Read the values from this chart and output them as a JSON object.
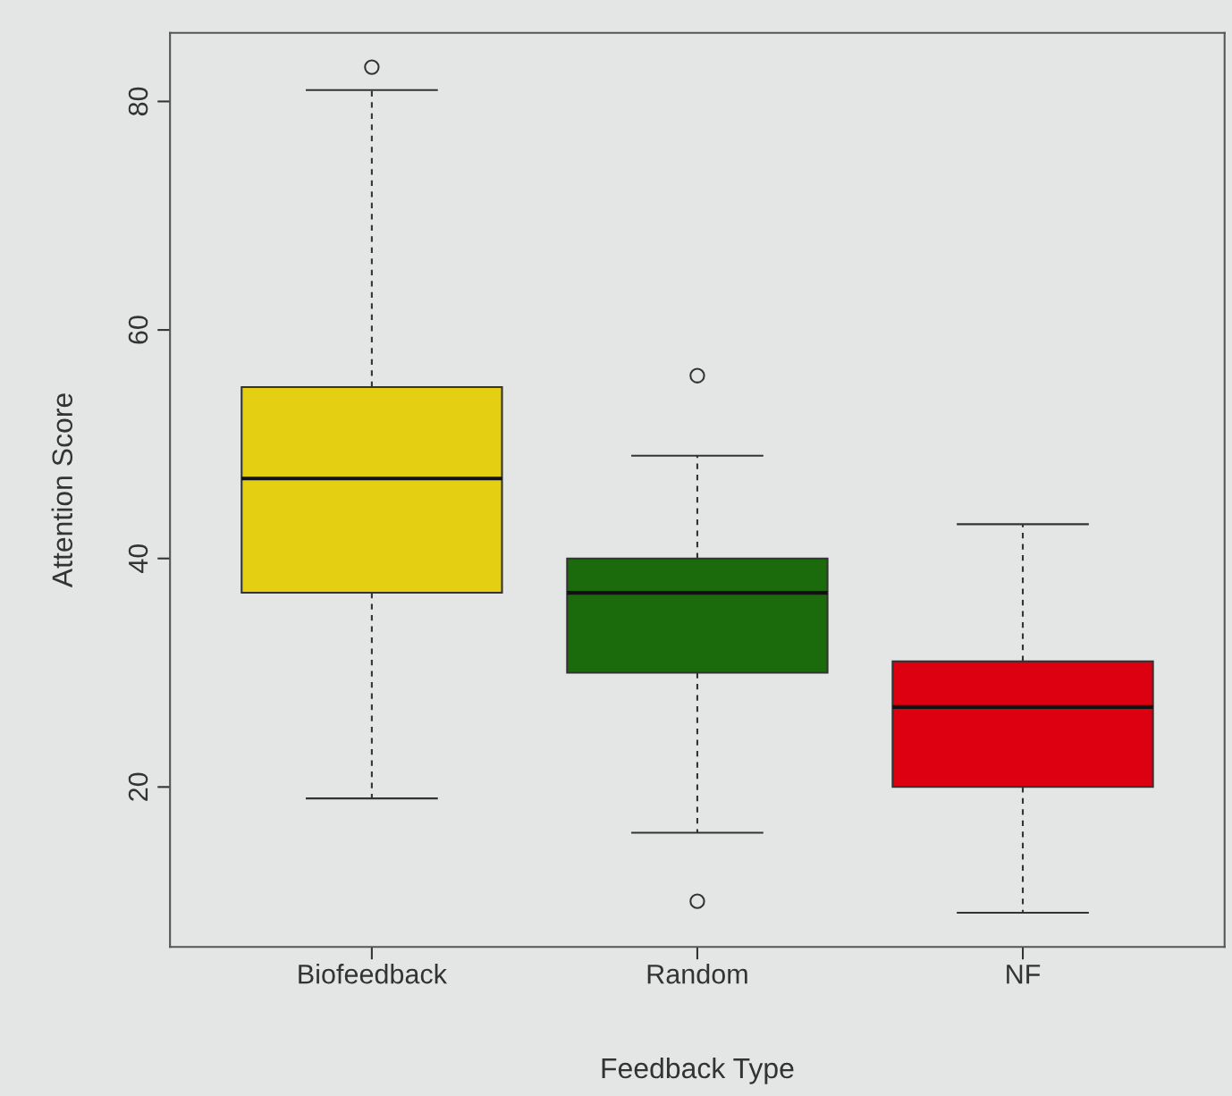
{
  "chart_data": {
    "type": "box",
    "xlabel": "Feedback Type",
    "ylabel": "Attention Score",
    "categories": [
      "Biofeedback",
      "Random",
      "NF"
    ],
    "colors": [
      "#e5cf12",
      "#1b6a0c",
      "#dd0010"
    ],
    "boxes": [
      {
        "low": 19,
        "q1": 37,
        "median": 47,
        "q3": 55,
        "high": 81,
        "outliers": [
          83
        ]
      },
      {
        "low": 16,
        "q1": 30,
        "median": 37,
        "q3": 40,
        "high": 49,
        "outliers": [
          56,
          10
        ]
      },
      {
        "low": 9,
        "q1": 20,
        "median": 27,
        "q3": 31,
        "high": 43
      }
    ],
    "ylim": [
      6,
      86
    ],
    "yticks": [
      20,
      40,
      60,
      80
    ],
    "grid": false,
    "legend": false
  }
}
